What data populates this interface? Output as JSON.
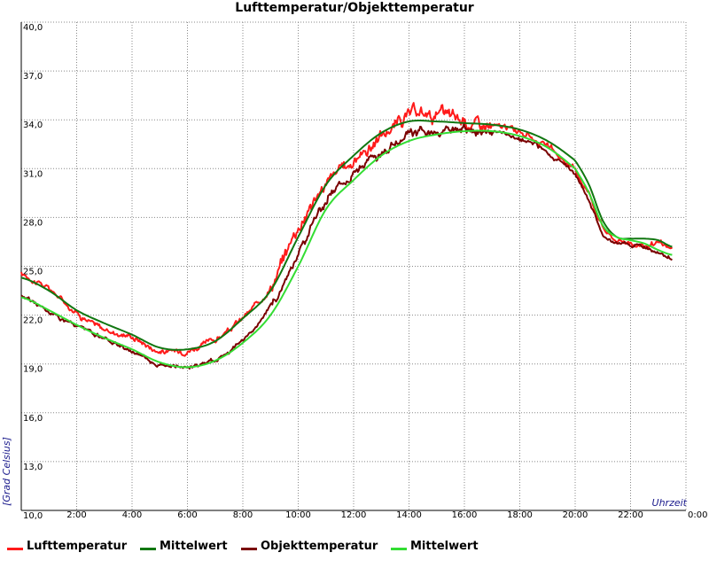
{
  "chart_data": {
    "type": "line",
    "title": "Lufttemperatur/Objekttemperatur",
    "xlabel": "Uhrzeit",
    "ylabel": "[Grad Celsius]",
    "xlim": [
      0,
      24
    ],
    "ylim": [
      10,
      40
    ],
    "grid": true,
    "legend_position": "bottom",
    "y_ticks": [
      "40,0",
      "37,0",
      "34,0",
      "31,0",
      "28,0",
      "25,0",
      "22,0",
      "19,0",
      "16,0",
      "13,0",
      "10,0"
    ],
    "x_ticks": [
      "2:00",
      "4:00",
      "6:00",
      "8:00",
      "10:00",
      "12:00",
      "14:00",
      "16:00",
      "18:00",
      "20:00",
      "22:00",
      "0:00"
    ],
    "x_tick_values": [
      2,
      4,
      6,
      8,
      10,
      12,
      14,
      16,
      18,
      20,
      22,
      24
    ],
    "series": [
      {
        "name": "Lufttemperatur",
        "color": "#ff1a1a",
        "noise": 0.5,
        "x": [
          0,
          1,
          2,
          3,
          4,
          5,
          6,
          7,
          8,
          9,
          10,
          11,
          12,
          13,
          14,
          15,
          16,
          17,
          18,
          19,
          20,
          20.5,
          21,
          21.5,
          22,
          22.5,
          23,
          23.5
        ],
        "y": [
          24.5,
          23.6,
          22.2,
          21.1,
          20.7,
          19.8,
          19.9,
          20.5,
          21.8,
          23.8,
          27.5,
          30.0,
          31.5,
          33.0,
          34.2,
          34.3,
          33.9,
          33.6,
          33.3,
          32.3,
          30.9,
          29.5,
          27.5,
          26.6,
          26.5,
          26.3,
          26.3,
          26.0
        ]
      },
      {
        "name": "Mittelwert",
        "color": "#117711",
        "noise": 0,
        "x": [
          0,
          1,
          2,
          3,
          4,
          5,
          6,
          7,
          8,
          9,
          10,
          11,
          12,
          13,
          14,
          15,
          16,
          17,
          18,
          19,
          20,
          20.5,
          21,
          21.5,
          22,
          22.5,
          23,
          23.5
        ],
        "y": [
          24.3,
          23.5,
          22.3,
          21.5,
          20.8,
          20.0,
          19.9,
          20.4,
          21.8,
          23.5,
          26.8,
          30.0,
          31.8,
          33.2,
          33.9,
          33.9,
          33.8,
          33.7,
          33.4,
          32.7,
          31.5,
          30.0,
          27.8,
          26.8,
          26.7,
          26.7,
          26.6,
          26.2
        ]
      },
      {
        "name": "Objekttemperatur",
        "color": "#7a0000",
        "noise": 0.35,
        "x": [
          0,
          1,
          2,
          3,
          4,
          5,
          6,
          7,
          8,
          9,
          10,
          11,
          12,
          13,
          14,
          15,
          16,
          17,
          18,
          19,
          20,
          20.5,
          21,
          21.5,
          22,
          22.5,
          23,
          23.5
        ],
        "y": [
          23.2,
          22.2,
          21.3,
          20.5,
          19.8,
          19.0,
          18.8,
          19.3,
          20.5,
          22.5,
          25.8,
          29.0,
          30.8,
          32.0,
          33.0,
          33.3,
          33.2,
          33.2,
          32.8,
          32.0,
          30.6,
          29.0,
          27.0,
          26.5,
          26.4,
          26.1,
          25.9,
          25.5
        ]
      },
      {
        "name": "Mittelwert",
        "color": "#33dd33",
        "noise": 0,
        "x": [
          0,
          1,
          2,
          3,
          4,
          5,
          6,
          7,
          8,
          9,
          10,
          11,
          12,
          13,
          14,
          15,
          16,
          17,
          18,
          19,
          20,
          20.5,
          21,
          21.5,
          22,
          22.5,
          23,
          23.5
        ],
        "y": [
          23.1,
          22.3,
          21.4,
          20.6,
          19.9,
          19.1,
          18.8,
          19.2,
          20.3,
          22.0,
          25.0,
          28.5,
          30.3,
          31.8,
          32.7,
          33.1,
          33.3,
          33.3,
          33.0,
          32.3,
          31.0,
          29.5,
          27.5,
          26.8,
          26.6,
          26.4,
          26.0,
          25.7
        ]
      }
    ]
  }
}
